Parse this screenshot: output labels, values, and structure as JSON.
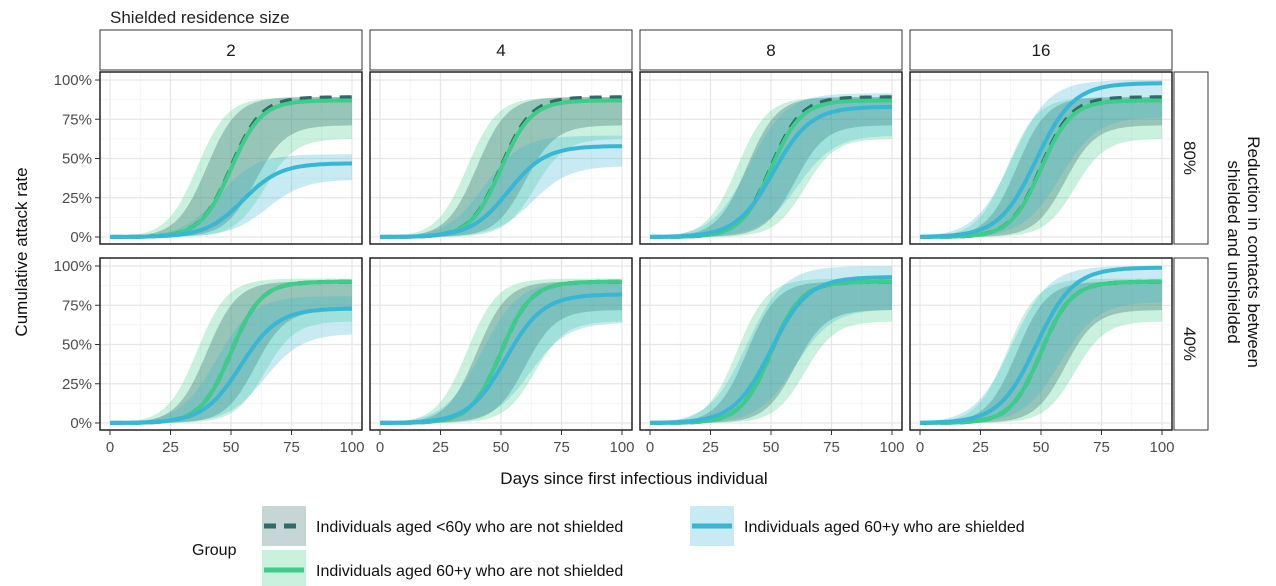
{
  "chart_data": {
    "type": "line",
    "facet_title": "Shielded residence size",
    "col_facets": [
      "2",
      "4",
      "8",
      "16"
    ],
    "row_facets": [
      "80%",
      "40%"
    ],
    "row_facet_title": "Reduction in contacts between shielded and unshielded",
    "xlabel": "Days since first infectious individual",
    "ylabel": "Cumulative attack rate",
    "xlim": [
      0,
      100
    ],
    "ylim": [
      0,
      1
    ],
    "x_ticks": [
      "0",
      "25",
      "50",
      "75",
      "100"
    ],
    "y_ticks": [
      "0%",
      "25%",
      "50%",
      "75%",
      "100%"
    ],
    "grid": true,
    "legend": {
      "title": "Group",
      "position": "bottom",
      "entries": [
        "Individuals aged <60y who are not shielded",
        "Individuals aged 60+y who are shielded",
        "Individuals aged 60+y who are not shielded"
      ]
    },
    "colors": {
      "under60_unshielded": "#2f6b68",
      "over60_shielded": "#38b6d4",
      "over60_unshielded": "#3dcc8a"
    },
    "series_order": [
      "under60_unshielded",
      "over60_unshielded",
      "over60_shielded"
    ],
    "series_midpoint_day": {
      "under60_unshielded": 50,
      "over60_unshielded": 50,
      "over60_shielded": 52
    },
    "final_attack_rate": {
      "under60_unshielded": [
        [
          0.89,
          0.89,
          0.89,
          0.89
        ],
        [
          0.9,
          0.9,
          0.9,
          0.9
        ]
      ],
      "over60_unshielded": [
        [
          0.87,
          0.87,
          0.87,
          0.87
        ],
        [
          0.9,
          0.9,
          0.9,
          0.9
        ]
      ],
      "over60_shielded": [
        [
          0.47,
          0.58,
          0.83,
          0.98
        ],
        [
          0.73,
          0.82,
          0.93,
          0.99
        ]
      ]
    },
    "over60_shielded_midpoint_day": [
      [
        55,
        53,
        51,
        48
      ],
      [
        54,
        52,
        50,
        48
      ]
    ]
  }
}
